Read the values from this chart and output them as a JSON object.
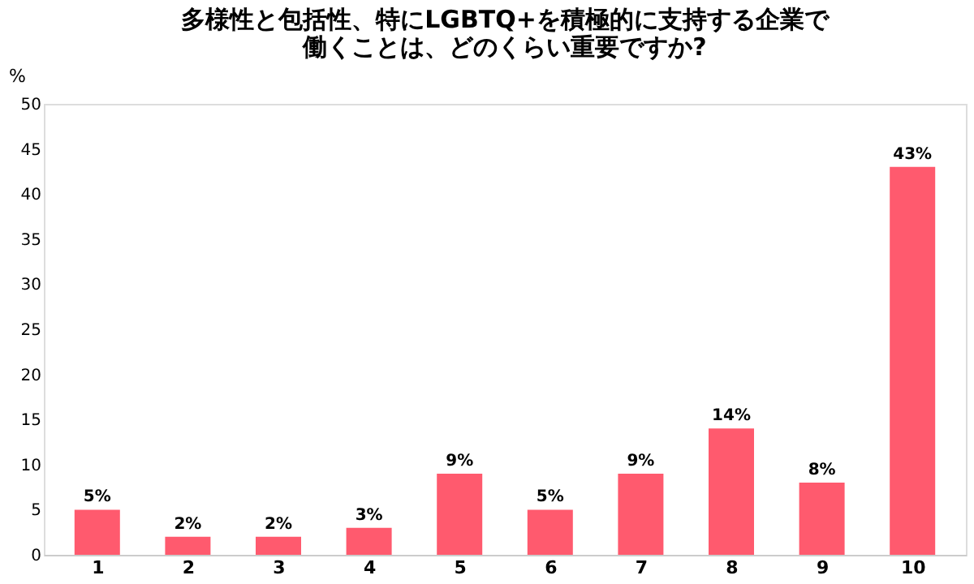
{
  "chart_data": {
    "type": "bar",
    "title": [
      "多様性と包括性、特にLGBTQ+を積極的に支持する企業で",
      "働くことは、どのくらい重要ですか?"
    ],
    "ylabel": "%",
    "categories": [
      "1",
      "2",
      "3",
      "4",
      "5",
      "6",
      "7",
      "8",
      "9",
      "10"
    ],
    "values": [
      5,
      2,
      2,
      3,
      9,
      5,
      9,
      14,
      8,
      43
    ],
    "value_labels": [
      "5%",
      "2%",
      "2%",
      "3%",
      "9%",
      "5%",
      "9%",
      "14%",
      "8%",
      "43%"
    ],
    "color": "#ff5a6e",
    "ylim": [
      0,
      50
    ],
    "yticks": [
      0,
      5,
      10,
      15,
      20,
      25,
      30,
      35,
      40,
      45,
      50
    ],
    "grid": false
  }
}
